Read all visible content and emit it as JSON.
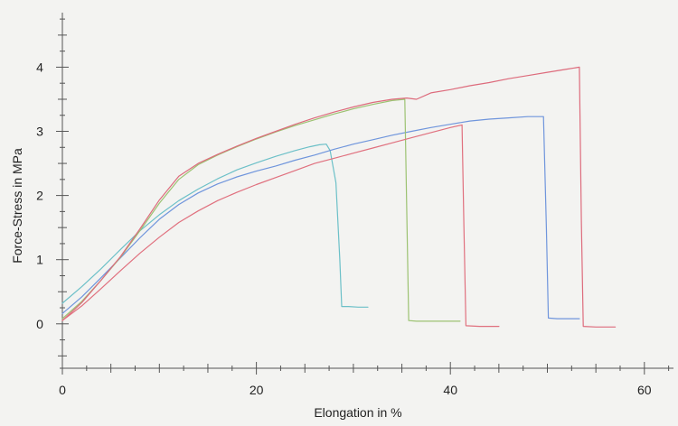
{
  "chart_data": {
    "type": "line",
    "title": "",
    "xlabel": "Elongation in %",
    "ylabel": "Force-Stress in MPa",
    "xlim": [
      0,
      63
    ],
    "ylim": [
      -0.65,
      4.85
    ],
    "xticks": [
      0,
      20,
      40,
      60
    ],
    "yticks": [
      0,
      1,
      2,
      3,
      4
    ],
    "grid": false,
    "legend": "none",
    "series": [
      {
        "color": "#6cc0c8",
        "x": [
          0,
          2,
          4,
          6,
          8,
          10,
          12,
          14,
          16,
          18,
          20,
          22,
          24,
          25.5,
          26.5,
          27.2,
          27.6,
          28.2,
          28.6,
          28.8,
          29.5,
          30.5,
          31.5
        ],
        "y": [
          0.32,
          0.58,
          0.86,
          1.16,
          1.45,
          1.7,
          1.92,
          2.1,
          2.26,
          2.4,
          2.51,
          2.61,
          2.7,
          2.76,
          2.79,
          2.8,
          2.7,
          2.2,
          1.0,
          0.27,
          0.27,
          0.26,
          0.26
        ]
      },
      {
        "color": "#6f95dc",
        "x": [
          0,
          2,
          4,
          6,
          8,
          10,
          12,
          14,
          16,
          18,
          20,
          22,
          24,
          26,
          28,
          30,
          32,
          34,
          36,
          38,
          40,
          42,
          44,
          46,
          48,
          49.6,
          49.9,
          50.1,
          51,
          53.3
        ],
        "y": [
          0.16,
          0.42,
          0.72,
          1.03,
          1.34,
          1.63,
          1.86,
          2.04,
          2.18,
          2.29,
          2.38,
          2.46,
          2.55,
          2.63,
          2.72,
          2.8,
          2.87,
          2.94,
          3.0,
          3.06,
          3.11,
          3.16,
          3.19,
          3.21,
          3.23,
          3.23,
          1.5,
          0.09,
          0.08,
          0.08
        ]
      },
      {
        "color": "#9cc272",
        "x": [
          0,
          2,
          4,
          6,
          8,
          10,
          12,
          14,
          16,
          18,
          20,
          22,
          24,
          26,
          28,
          30,
          32,
          34,
          35.3,
          35.5,
          35.7,
          36.5,
          38,
          41
        ],
        "y": [
          0.08,
          0.35,
          0.68,
          1.04,
          1.45,
          1.88,
          2.25,
          2.48,
          2.63,
          2.76,
          2.88,
          2.99,
          3.09,
          3.18,
          3.27,
          3.35,
          3.42,
          3.48,
          3.5,
          1.8,
          0.05,
          0.04,
          0.04,
          0.04
        ]
      },
      {
        "color": "#dd6b7c",
        "x": [
          0,
          2,
          4,
          6,
          8,
          10,
          12,
          14,
          16,
          18,
          20,
          22,
          24,
          26,
          28,
          30,
          32,
          34,
          35.5,
          36.5,
          38,
          40,
          42,
          44,
          46,
          48,
          50,
          52,
          53.3,
          53.5,
          53.7,
          55,
          57
        ],
        "y": [
          0.05,
          0.33,
          0.68,
          1.05,
          1.48,
          1.93,
          2.3,
          2.5,
          2.64,
          2.77,
          2.89,
          3.0,
          3.11,
          3.21,
          3.3,
          3.38,
          3.45,
          3.5,
          3.52,
          3.5,
          3.6,
          3.65,
          3.71,
          3.76,
          3.82,
          3.87,
          3.92,
          3.97,
          4.0,
          1.6,
          -0.04,
          -0.05,
          -0.05
        ]
      },
      {
        "color": "#e0707e",
        "x": [
          0,
          2,
          4,
          6,
          8,
          10,
          12,
          14,
          16,
          18,
          20,
          22,
          24,
          26,
          28,
          30,
          32,
          34,
          36,
          38,
          40,
          41.2,
          41.4,
          41.6,
          43,
          45
        ],
        "y": [
          0.05,
          0.28,
          0.55,
          0.83,
          1.1,
          1.35,
          1.58,
          1.76,
          1.92,
          2.05,
          2.17,
          2.28,
          2.39,
          2.5,
          2.58,
          2.66,
          2.74,
          2.82,
          2.9,
          2.98,
          3.06,
          3.1,
          1.5,
          -0.03,
          -0.04,
          -0.04
        ]
      }
    ]
  }
}
